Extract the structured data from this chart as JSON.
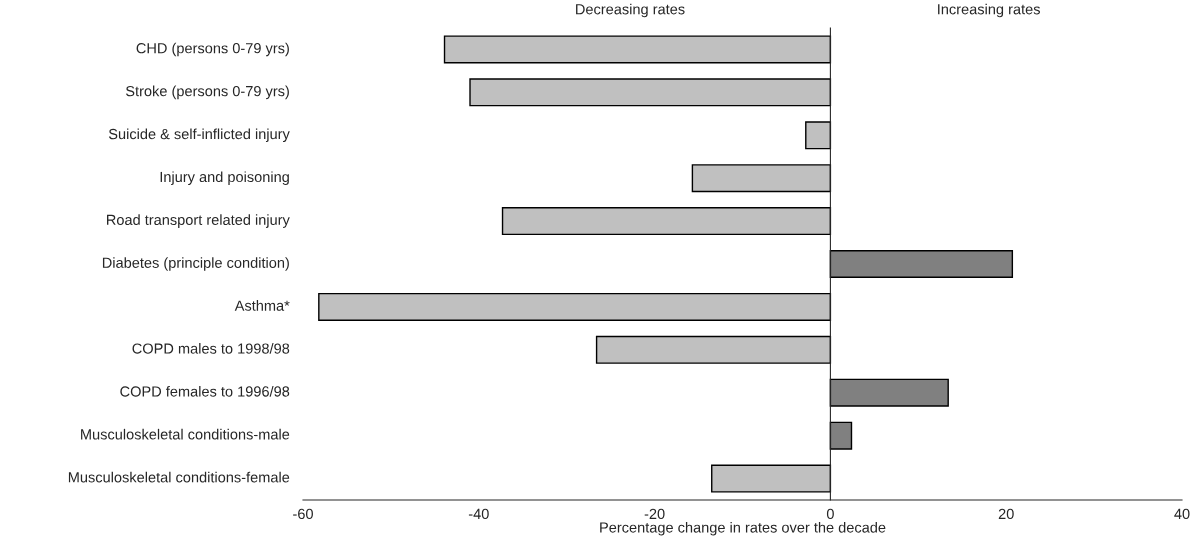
{
  "chart_data": {
    "type": "bar",
    "orientation": "horizontal",
    "xlabel": "Percentage change in rates over the decade",
    "categories": [
      "CHD (persons 0-79 yrs)",
      "Stroke (persons 0-79 yrs)",
      "Suicide & self-inflicted injury",
      "Injury and poisoning",
      "Road transport related injury",
      "Diabetes (principle condition)",
      "Asthma*",
      "COPD males to 1998/98",
      "COPD females to 1996/98",
      "Musculoskeletal conditions-male",
      "Musculoskeletal conditions-female"
    ],
    "values": [
      -43.9,
      -41.0,
      -2.8,
      -15.7,
      -37.3,
      20.7,
      -58.2,
      -26.6,
      13.4,
      2.4,
      -13.5
    ],
    "colors": [
      "#c0c0c0",
      "#c0c0c0",
      "#c0c0c0",
      "#c0c0c0",
      "#c0c0c0",
      "#808080",
      "#c0c0c0",
      "#c0c0c0",
      "#808080",
      "#808080",
      "#c0c0c0"
    ],
    "xlim": [
      -60,
      40
    ],
    "xticks": [
      -60,
      -40,
      -20,
      0,
      20,
      40
    ],
    "annotations": [
      "Decreasing rates",
      "Increasing rates"
    ]
  }
}
